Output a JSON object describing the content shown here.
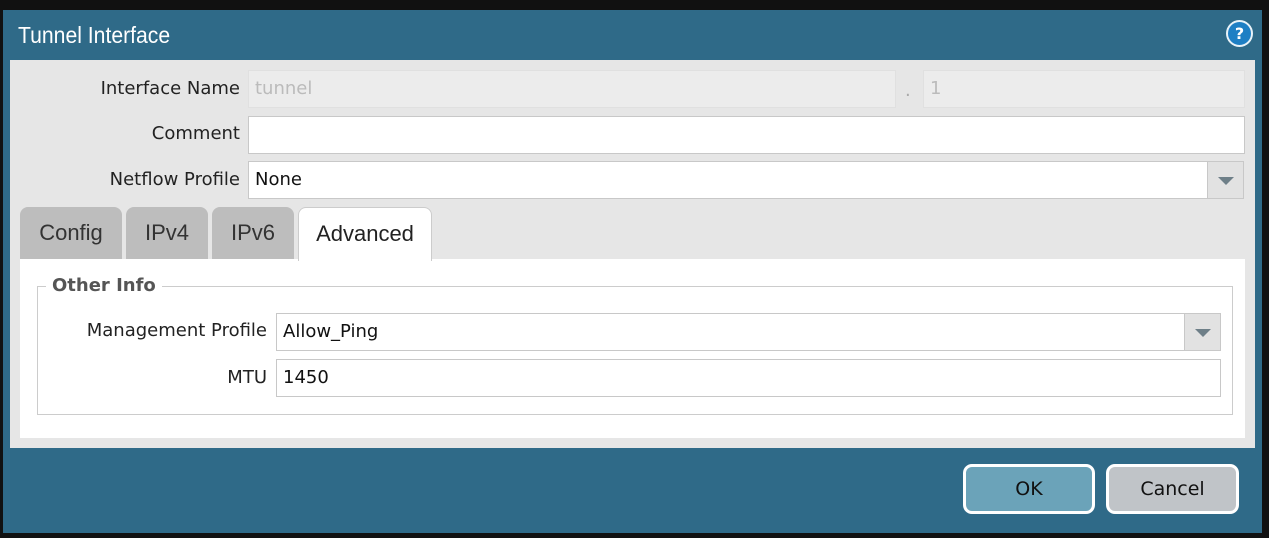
{
  "dialog": {
    "title": "Tunnel Interface",
    "help_icon": "help-icon"
  },
  "form": {
    "interface_name_label": "Interface Name",
    "interface_name_value": "tunnel",
    "separator": ".",
    "interface_number": "1",
    "comment_label": "Comment",
    "comment_value": "",
    "netflow_label": "Netflow Profile",
    "netflow_value": "None"
  },
  "tabs": [
    {
      "label": "Config"
    },
    {
      "label": "IPv4"
    },
    {
      "label": "IPv6"
    },
    {
      "label": "Advanced",
      "active": true
    }
  ],
  "advanced": {
    "section": "Other Info",
    "mgmt_label": "Management Profile",
    "mgmt_value": "Allow_Ping",
    "mtu_label": "MTU",
    "mtu_value": "1450"
  },
  "buttons": {
    "ok": "OK",
    "cancel": "Cancel"
  },
  "colors": {
    "titlebar": "#2f6a88",
    "ok": "#6ba3b9",
    "cancel": "#c0c4c8"
  }
}
